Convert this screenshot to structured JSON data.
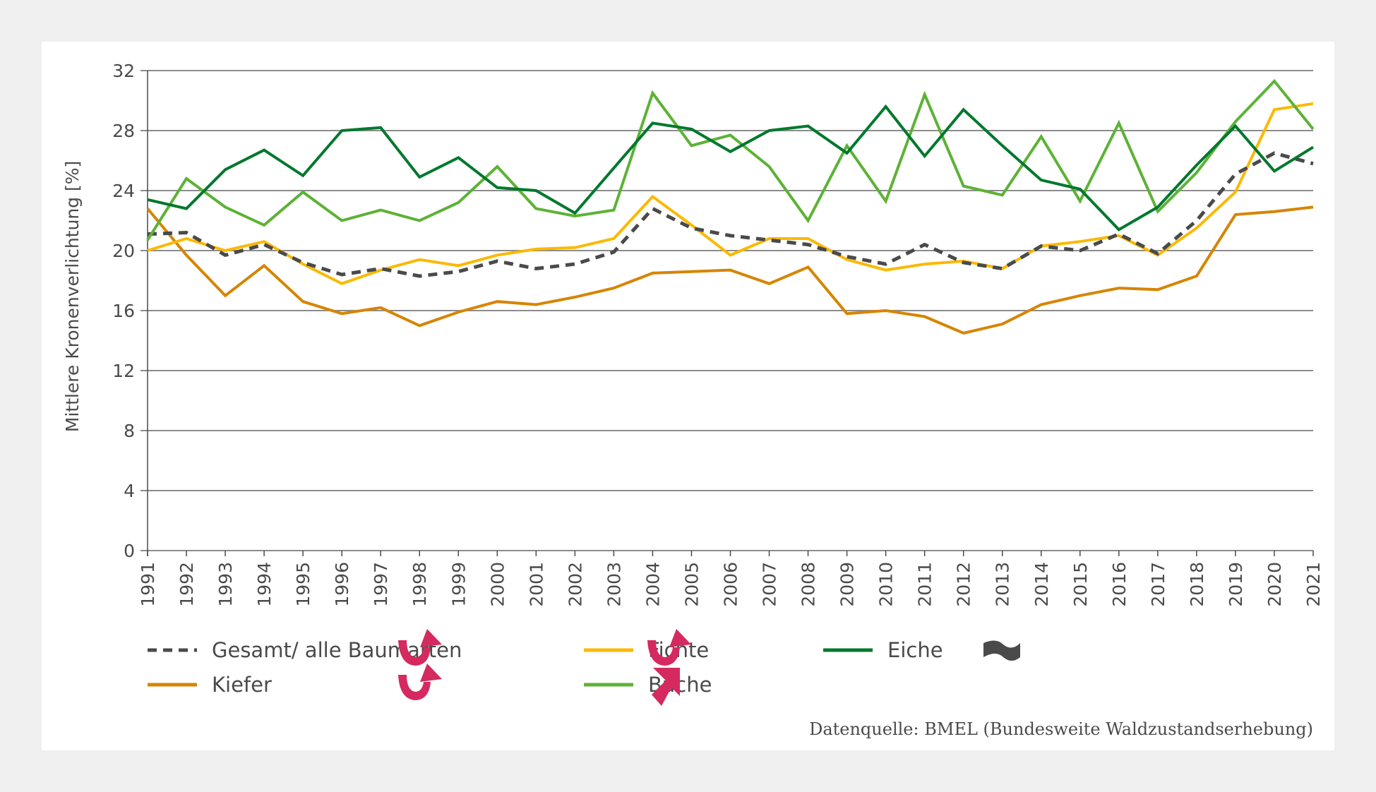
{
  "chart_data": {
    "type": "line",
    "title": "",
    "xlabel": "",
    "ylabel": "Mittlere Kronenverlichtung [%]",
    "ylim": [
      0,
      32
    ],
    "yticks": [
      0,
      4,
      8,
      12,
      16,
      20,
      24,
      28,
      32
    ],
    "grid": true,
    "x": [
      1991,
      1992,
      1993,
      1994,
      1995,
      1996,
      1997,
      1998,
      1999,
      2000,
      2001,
      2002,
      2003,
      2004,
      2005,
      2006,
      2007,
      2008,
      2009,
      2010,
      2011,
      2012,
      2013,
      2014,
      2015,
      2016,
      2017,
      2018,
      2019,
      2020,
      2021
    ],
    "series": [
      {
        "name": "Gesamt/ alle Baumarten",
        "color": "#4a4a4a",
        "style": "dashed",
        "trend_icon": "u-turn-up-arrow-icon",
        "values": [
          21.1,
          21.2,
          19.7,
          20.4,
          19.2,
          18.4,
          18.8,
          18.3,
          18.6,
          19.3,
          18.8,
          19.1,
          19.9,
          22.8,
          21.5,
          21.0,
          20.7,
          20.4,
          19.6,
          19.1,
          20.4,
          19.2,
          18.8,
          20.3,
          20.0,
          21.1,
          19.8,
          22.0,
          25.1,
          26.5,
          25.8
        ]
      },
      {
        "name": "Kiefer",
        "color": "#d68500",
        "style": "solid",
        "trend_icon": "u-turn-up-arrow-icon",
        "values": [
          22.8,
          19.7,
          17.0,
          19.0,
          16.6,
          15.8,
          16.2,
          15.0,
          15.9,
          16.6,
          16.4,
          16.9,
          17.5,
          18.5,
          18.6,
          18.7,
          17.8,
          18.9,
          15.8,
          16.0,
          15.6,
          14.5,
          15.1,
          16.4,
          17.0,
          17.5,
          17.4,
          18.3,
          22.4,
          22.6,
          22.9
        ]
      },
      {
        "name": "Fichte",
        "color": "#fbb900",
        "style": "solid",
        "trend_icon": "u-turn-up-arrow-icon",
        "values": [
          20.0,
          20.8,
          20.0,
          20.6,
          19.1,
          17.8,
          18.7,
          19.4,
          19.0,
          19.7,
          20.1,
          20.2,
          20.8,
          23.6,
          21.7,
          19.7,
          20.8,
          20.8,
          19.4,
          18.7,
          19.1,
          19.3,
          18.8,
          20.3,
          20.6,
          21.0,
          19.7,
          21.5,
          23.9,
          29.4,
          29.8
        ]
      },
      {
        "name": "Buche",
        "color": "#5db236",
        "style": "solid",
        "trend_icon": "diagonal-up-arrow-icon",
        "values": [
          20.7,
          24.8,
          22.9,
          21.7,
          23.9,
          22.0,
          22.7,
          22.0,
          23.2,
          25.6,
          22.8,
          22.3,
          22.7,
          30.5,
          27.0,
          27.7,
          25.6,
          22.0,
          27.0,
          23.3,
          30.4,
          24.3,
          23.7,
          27.6,
          23.3,
          28.5,
          22.6,
          25.2,
          28.6,
          31.3,
          28.1
        ]
      },
      {
        "name": "Eiche",
        "color": "#00782d",
        "style": "solid",
        "trend_icon": "wave-flat-icon",
        "values": [
          23.4,
          22.8,
          25.4,
          26.7,
          25.0,
          28.0,
          28.2,
          24.9,
          26.2,
          24.2,
          24.0,
          22.5,
          25.5,
          28.5,
          28.1,
          26.6,
          28.0,
          28.3,
          26.5,
          29.6,
          26.3,
          29.4,
          27.0,
          24.7,
          24.1,
          21.4,
          22.9,
          25.7,
          28.3,
          25.3,
          26.9
        ]
      }
    ],
    "legend_position": "bottom",
    "source_note": "Datenquelle: BMEL (Bundesweite Waldzustandserhebung)"
  },
  "legend": [
    {
      "label": "Gesamt/ alle Baumarten"
    },
    {
      "label": "Kiefer"
    },
    {
      "label": "Fichte"
    },
    {
      "label": "Buche"
    },
    {
      "label": "Eiche"
    }
  ],
  "colors": {
    "trend_icon": "#d42a5f",
    "trend_icon_neutral": "#4a4a4a",
    "grid": "#8c8c8c",
    "axis": "#4a4a4a"
  }
}
